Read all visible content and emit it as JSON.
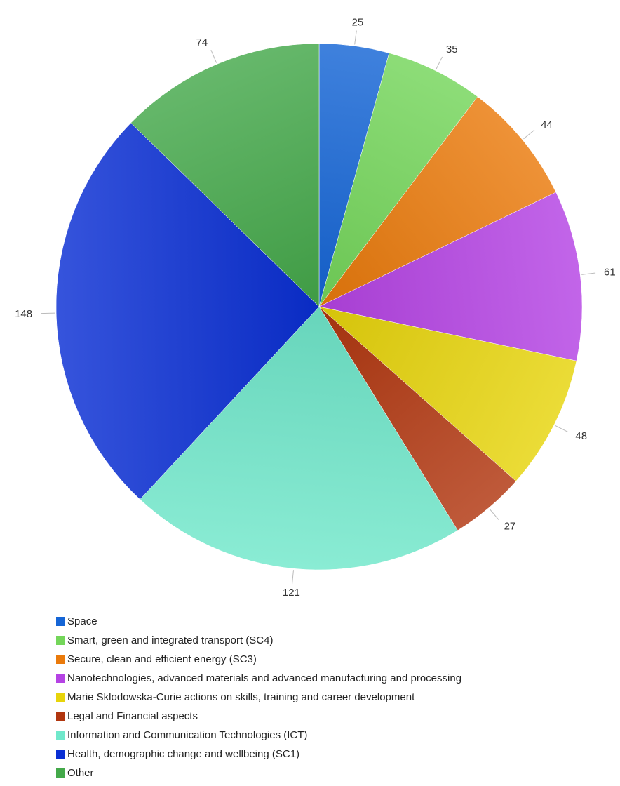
{
  "chart_data": {
    "type": "pie",
    "title": "",
    "legend_position": "bottom",
    "slices": [
      {
        "label": "Space",
        "value": 25,
        "color": "#1565d6"
      },
      {
        "label": "Smart, green and integrated transport (SC4)",
        "value": 35,
        "color": "#74d65a"
      },
      {
        "label": "Secure, clean and efficient energy (SC3)",
        "value": 44,
        "color": "#ea7a0b"
      },
      {
        "label": "Nanotechnologies, advanced materials and advanced manufacturing and processing",
        "value": 61,
        "color": "#b543e4"
      },
      {
        "label": "Marie Sklodowska-Curie actions on skills, training and career development",
        "value": 48,
        "color": "#e7d40b"
      },
      {
        "label": "Legal and Financial aspects",
        "value": 27,
        "color": "#b1360f"
      },
      {
        "label": "Information and Communication Technologies (ICT)",
        "value": 121,
        "color": "#70e8cb"
      },
      {
        "label": "Health, demographic change and wellbeing (SC1)",
        "value": 148,
        "color": "#0a2fd4"
      },
      {
        "label": "Other",
        "value": 74,
        "color": "#44a94a"
      }
    ]
  }
}
